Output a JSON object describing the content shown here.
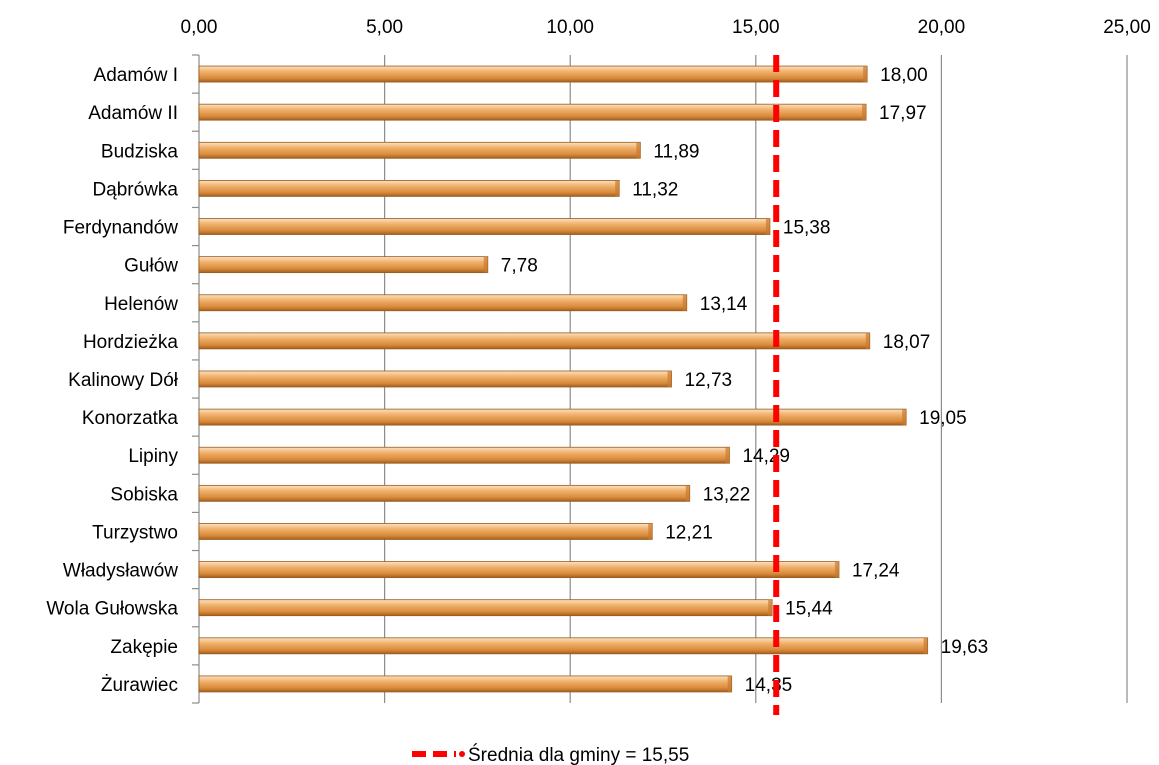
{
  "chart_data": {
    "type": "bar",
    "orientation": "horizontal",
    "title": "",
    "xlabel": "",
    "ylabel": "",
    "xlim": [
      0,
      25
    ],
    "x_ticks": [
      "0,00",
      "5,00",
      "10,00",
      "15,00",
      "20,00",
      "25,00"
    ],
    "x_tick_values": [
      0,
      5,
      10,
      15,
      20,
      25
    ],
    "grid": "vertical",
    "categories": [
      "Adamów I",
      "Adamów II",
      "Budziska",
      "Dąbrówka",
      "Ferdynandów",
      "Gułów",
      "Helenów",
      "Hordzieżka",
      "Kalinowy Dół",
      "Konorzatka",
      "Lipiny",
      "Sobiska",
      "Turzystwo",
      "Władysławów",
      "Wola Gułowska",
      "Zakępie",
      "Żurawiec"
    ],
    "values": [
      18.0,
      17.97,
      11.89,
      11.32,
      15.38,
      7.78,
      13.14,
      18.07,
      12.73,
      19.05,
      14.29,
      13.22,
      12.21,
      17.24,
      15.44,
      19.63,
      14.35
    ],
    "data_labels": [
      "18,00",
      "17,97",
      "11,89",
      "11,32",
      "15,38",
      "7,78",
      "13,14",
      "18,07",
      "12,73",
      "19,05",
      "14,29",
      "13,22",
      "12,21",
      "17,24",
      "15,44",
      "19,63",
      "14,35"
    ],
    "reference_line": {
      "value": 15.55,
      "label": "Średnia dla gminy = 15,55",
      "style": "dashed",
      "color": "#ff0000"
    },
    "bar_color": "#e8a860",
    "legend_placement": "bottom"
  }
}
